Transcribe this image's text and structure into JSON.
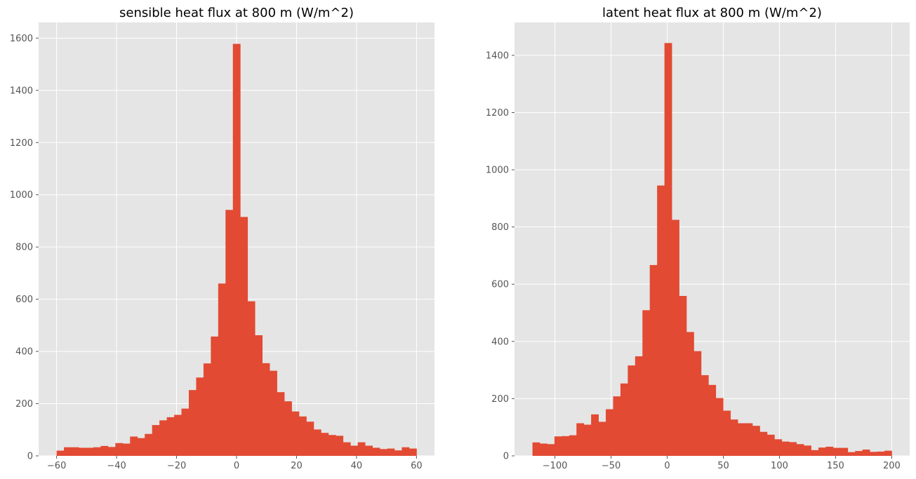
{
  "chart_data": [
    {
      "type": "bar",
      "title": "sensible heat flux at 800 m (W/m^2)",
      "xlabel": "",
      "ylabel": "",
      "xlim": [
        -66,
        66
      ],
      "ylim": [
        0,
        1660
      ],
      "xticks": [
        -60,
        -40,
        -20,
        0,
        20,
        40,
        60
      ],
      "yticks": [
        0,
        200,
        400,
        600,
        800,
        1000,
        1200,
        1400,
        1600
      ],
      "grid": true,
      "bin_start": -60,
      "bin_end": 60,
      "counts": [
        20,
        33,
        33,
        31,
        31,
        33,
        38,
        34,
        49,
        47,
        74,
        68,
        84,
        118,
        136,
        148,
        157,
        181,
        252,
        300,
        354,
        457,
        660,
        942,
        1578,
        915,
        592,
        462,
        355,
        326,
        244,
        209,
        170,
        151,
        131,
        101,
        88,
        80,
        77,
        52,
        39,
        52,
        39,
        31,
        26,
        28,
        21,
        33,
        28
      ]
    },
    {
      "type": "bar",
      "title": "latent heat flux at 800 m (W/m^2)",
      "xlabel": "",
      "ylabel": "",
      "xlim": [
        -136,
        216
      ],
      "ylim": [
        0,
        1515
      ],
      "xticks": [
        -100,
        -50,
        0,
        50,
        100,
        150,
        200
      ],
      "yticks": [
        0,
        200,
        400,
        600,
        800,
        1000,
        1200,
        1400
      ],
      "grid": true,
      "bin_start": -120,
      "bin_end": 200,
      "counts": [
        47,
        43,
        41,
        68,
        69,
        72,
        114,
        109,
        145,
        119,
        163,
        208,
        253,
        316,
        348,
        509,
        667,
        945,
        1443,
        825,
        559,
        433,
        366,
        282,
        248,
        202,
        158,
        127,
        114,
        114,
        105,
        84,
        74,
        58,
        50,
        48,
        41,
        36,
        20,
        29,
        32,
        28,
        28,
        13,
        17,
        22,
        14,
        15,
        18
      ]
    }
  ],
  "style": {
    "bar_color": "#e24a33",
    "axes_bg": "#e5e5e5",
    "grid_color": "#ffffff",
    "tick_color": "#555555"
  }
}
